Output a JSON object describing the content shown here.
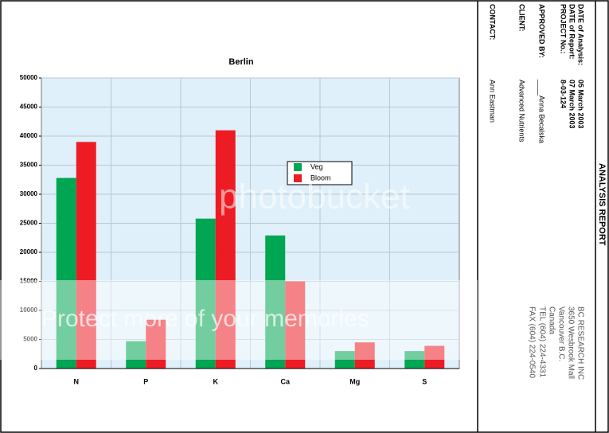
{
  "chart_data": {
    "type": "bar",
    "title": "Berlin",
    "categories": [
      "N",
      "P",
      "K",
      "Ca",
      "Mg",
      "S"
    ],
    "series": [
      {
        "name": "Veg",
        "color": "#00a651",
        "values": [
          32800,
          4700,
          25800,
          22900,
          3000,
          3000
        ]
      },
      {
        "name": "Bloom",
        "color": "#ed1c24",
        "values": [
          39000,
          8400,
          41000,
          15000,
          4500,
          3900
        ]
      }
    ],
    "ylim": [
      0,
      50000
    ],
    "yticks": [
      0,
      5000,
      10000,
      15000,
      20000,
      25000,
      30000,
      35000,
      40000,
      45000,
      50000
    ],
    "grid": true
  },
  "report": {
    "title": "ANALYSIS REPORT",
    "fields": [
      {
        "label": "DATE of Analysis:",
        "value": "05 March 2003"
      },
      {
        "label": "DATE of Report:",
        "value": "07 March 2003"
      },
      {
        "label": "PROJECT No.:",
        "value": "8-03-124"
      },
      {
        "label": "APPROVED BY:",
        "value": "____Anna Becalska"
      },
      {
        "label": "CLIENT:",
        "value": "Advanced Nutrients"
      },
      {
        "label": "CONTACT:",
        "value": "Ann Eastman"
      }
    ],
    "company": [
      "BC RESEARCH INC",
      "3650 Wesbrook Mall",
      "Vancouver B.C.",
      "Canada",
      "TEL (604) 224-4331",
      "FAX (604) 224-0540"
    ]
  },
  "watermark": {
    "logo": "photobucket",
    "banner": "Protect more of your memories"
  }
}
